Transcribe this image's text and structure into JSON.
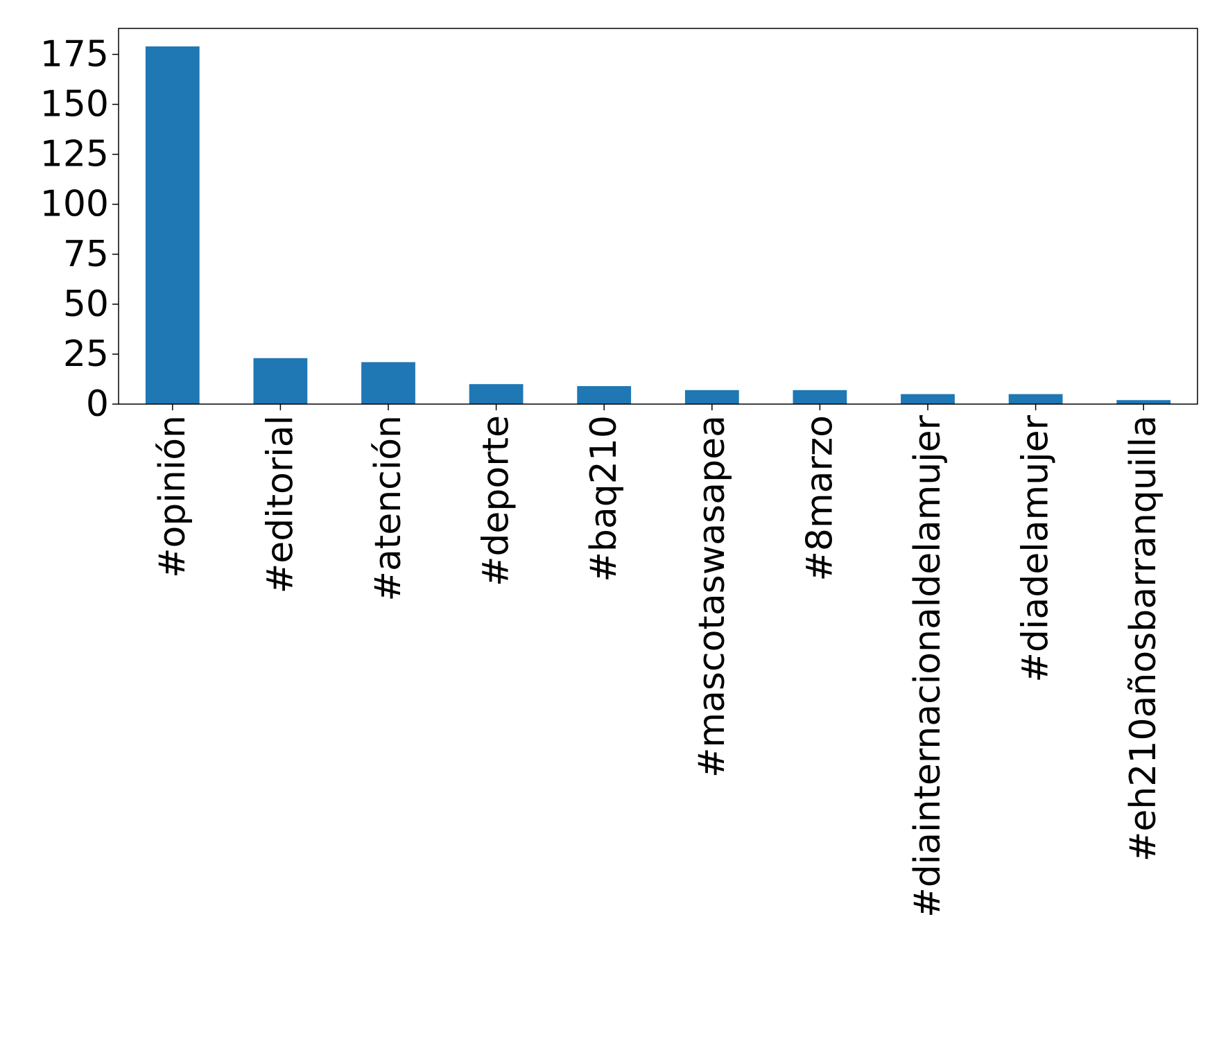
{
  "chart_data": {
    "type": "bar",
    "title": "",
    "xlabel": "",
    "ylabel": "",
    "categories": [
      "#opinión",
      "#editorial",
      "#atención",
      "#deporte",
      "#baq210",
      "#mascotaswasapea",
      "#8marzo",
      "#diainternacionaldelamujer",
      "#diadelamujer",
      "#eh210añosbarranquilla"
    ],
    "values": [
      179,
      23,
      21,
      10,
      9,
      7,
      7,
      5,
      5,
      2
    ],
    "ylim": [
      0,
      188
    ],
    "yticks": [
      0,
      25,
      50,
      75,
      100,
      125,
      150,
      175
    ],
    "grid": false,
    "legend": "none",
    "bar_color": "#1f77b4"
  }
}
